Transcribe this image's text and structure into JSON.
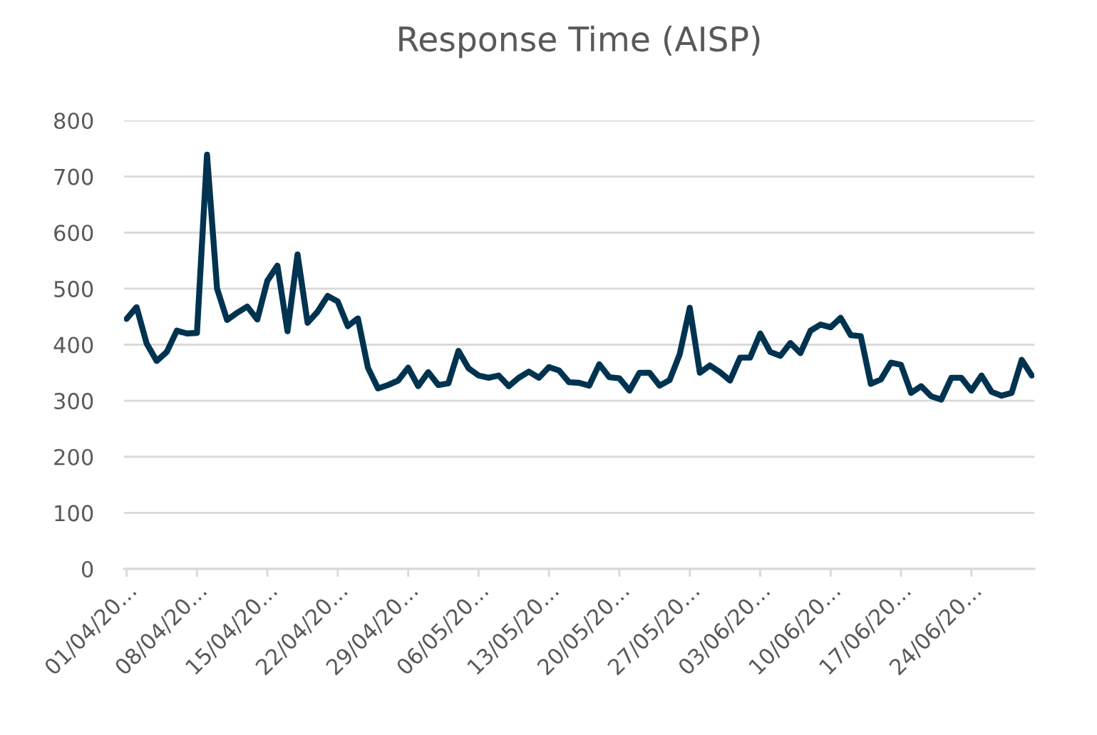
{
  "chart_data": {
    "type": "line",
    "title": "Response Time (AISP)",
    "categories": [
      "01/04/20…",
      null,
      null,
      null,
      null,
      null,
      null,
      "08/04/20…",
      null,
      null,
      null,
      null,
      null,
      null,
      "15/04/20…",
      null,
      null,
      null,
      null,
      null,
      null,
      "22/04/20…",
      null,
      null,
      null,
      null,
      null,
      null,
      "29/04/20…",
      null,
      null,
      null,
      null,
      null,
      null,
      "06/05/20…",
      null,
      null,
      null,
      null,
      null,
      null,
      "13/05/20…",
      null,
      null,
      null,
      null,
      null,
      null,
      "20/05/20…",
      null,
      null,
      null,
      null,
      null,
      null,
      "27/05/20…",
      null,
      null,
      null,
      null,
      null,
      null,
      "03/06/20…",
      null,
      null,
      null,
      null,
      null,
      null,
      "10/06/20…",
      null,
      null,
      null,
      null,
      null,
      null,
      "17/06/20…",
      null,
      null,
      null,
      null,
      null,
      null,
      "24/06/20…",
      null,
      null,
      null,
      null,
      null,
      null
    ],
    "series": [
      {
        "color": "#003350",
        "values": [
          446,
          467,
          402,
          371,
          387,
          425,
          420,
          421,
          739,
          500,
          444,
          457,
          468,
          445,
          514,
          541,
          424,
          561,
          439,
          459,
          487,
          477,
          433,
          447,
          359,
          322,
          328,
          336,
          359,
          326,
          351,
          328,
          331,
          389,
          358,
          345,
          341,
          345,
          326,
          341,
          352,
          341,
          360,
          354,
          333,
          332,
          327,
          365,
          342,
          340,
          318,
          350,
          350,
          327,
          337,
          383,
          466,
          350,
          363,
          351,
          336,
          377,
          377,
          420,
          387,
          380,
          403,
          385,
          425,
          436,
          431,
          448,
          417,
          415,
          330,
          338,
          368,
          364,
          314,
          326,
          308,
          302,
          341,
          341,
          318,
          345,
          316,
          309,
          314,
          373,
          345
        ]
      }
    ],
    "ylim": [
      0,
      800
    ],
    "yticks": [
      0,
      100,
      200,
      300,
      400,
      500,
      600,
      700,
      800
    ],
    "grid": "y",
    "legend": false,
    "marker": "none",
    "line_style": "solid"
  }
}
